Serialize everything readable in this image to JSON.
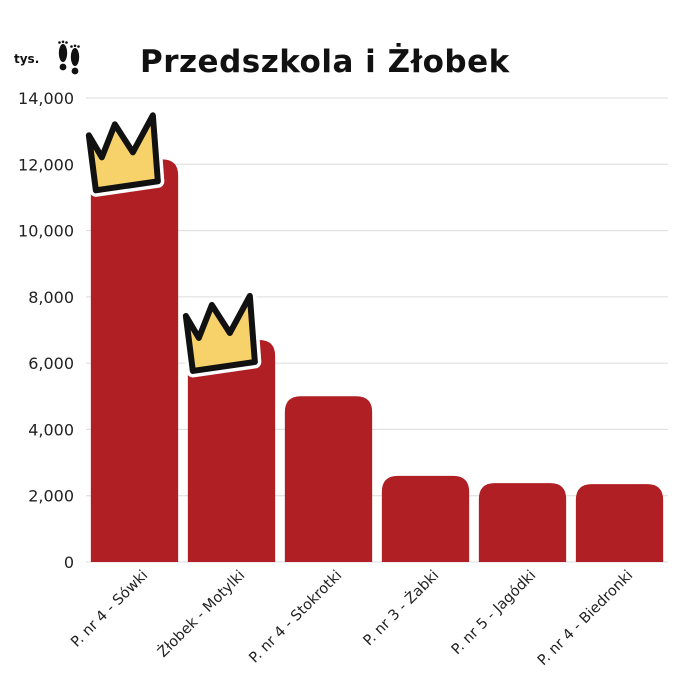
{
  "chart_data": {
    "type": "bar",
    "title": "Przedszkola i Żłobek",
    "unit_label": "tys.",
    "icon": "footprints-icon",
    "categories": [
      "P. nr 4 - Sówki",
      "Żłobek - Motylki",
      "P. nr 4 - Stokrotki",
      "P. nr 3 - Żabki",
      "P. nr 5 - Jagódki",
      "P. nr 4 - Biedronki"
    ],
    "values": [
      12150,
      6700,
      5000,
      2600,
      2380,
      2350
    ],
    "ylim": [
      0,
      14000
    ],
    "y_ticks": [
      "0",
      "2,000",
      "4,000",
      "6,000",
      "8,000",
      "10,000",
      "12,000",
      "14,000"
    ],
    "grid": true,
    "bar_color": "#b01f24",
    "crown_color": "#f7d26b",
    "crowned_bars": [
      0,
      1
    ]
  }
}
